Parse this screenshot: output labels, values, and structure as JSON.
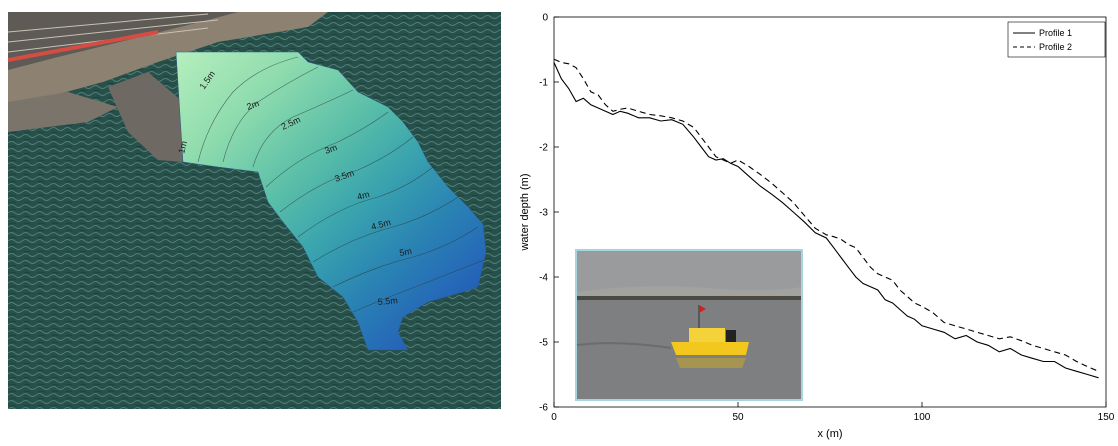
{
  "map": {
    "contour_labels": [
      "1.5m",
      "2m",
      "2.5m",
      "3m",
      "3.5m",
      "4m",
      "4.5m",
      "5m",
      "5.5m",
      "1m"
    ],
    "colors": {
      "sea": "#27504a",
      "land": "#8d8171",
      "rock": "#6e6a63",
      "bathy_shallow": "#a8e8b4",
      "bathy_deep": "#1e52b0"
    }
  },
  "inset": {
    "colors": {
      "sky": "#8f9091",
      "water": "#7d7f80",
      "boat": "#f2c81e",
      "border": "#a6d5e0"
    }
  },
  "chart_data": {
    "type": "line",
    "title": "",
    "xlabel": "x (m)",
    "ylabel": "water depth (m)",
    "xlim": [
      0,
      150
    ],
    "ylim": [
      -6,
      0
    ],
    "xticks": [
      0,
      50,
      100,
      150
    ],
    "yticks": [
      0,
      -1,
      -2,
      -3,
      -4,
      -5,
      -6
    ],
    "grid": false,
    "legend_position": "top-right",
    "series": [
      {
        "name": "Profile 1",
        "style": "solid",
        "x": [
          0,
          2,
          4,
          6,
          8,
          10,
          12,
          14,
          16,
          18,
          20,
          23,
          26,
          29,
          32,
          35,
          38,
          40,
          42,
          44,
          46,
          48,
          50,
          53,
          56,
          59,
          62,
          65,
          68,
          71,
          74,
          76,
          78,
          80,
          82,
          84,
          86,
          88,
          90,
          92,
          94,
          96,
          98,
          100,
          103,
          106,
          109,
          112,
          115,
          118,
          121,
          124,
          127,
          130,
          133,
          136,
          139,
          142,
          145,
          148
        ],
        "y": [
          -0.7,
          -0.95,
          -1.1,
          -1.3,
          -1.25,
          -1.35,
          -1.4,
          -1.45,
          -1.5,
          -1.45,
          -1.48,
          -1.55,
          -1.55,
          -1.6,
          -1.58,
          -1.65,
          -1.85,
          -2.0,
          -2.15,
          -2.2,
          -2.18,
          -2.25,
          -2.3,
          -2.45,
          -2.6,
          -2.72,
          -2.85,
          -3.0,
          -3.15,
          -3.32,
          -3.4,
          -3.55,
          -3.7,
          -3.85,
          -4.0,
          -4.1,
          -4.15,
          -4.2,
          -4.35,
          -4.4,
          -4.5,
          -4.6,
          -4.65,
          -4.75,
          -4.8,
          -4.85,
          -4.95,
          -4.9,
          -5.0,
          -5.05,
          -5.15,
          -5.1,
          -5.2,
          -5.25,
          -5.3,
          -5.3,
          -5.4,
          -5.45,
          -5.5,
          -5.55
        ]
      },
      {
        "name": "Profile 2",
        "style": "dashed",
        "x": [
          0,
          2,
          4,
          6,
          8,
          10,
          12,
          14,
          16,
          18,
          20,
          23,
          26,
          29,
          32,
          35,
          38,
          40,
          42,
          44,
          46,
          48,
          50,
          53,
          56,
          59,
          62,
          65,
          68,
          71,
          74,
          76,
          78,
          80,
          82,
          84,
          86,
          88,
          90,
          92,
          94,
          96,
          98,
          100,
          103,
          106,
          109,
          112,
          115,
          118,
          121,
          124,
          127,
          130,
          133,
          136,
          139,
          142,
          145,
          148
        ],
        "y": [
          -0.65,
          -0.7,
          -0.72,
          -0.78,
          -0.95,
          -1.15,
          -1.2,
          -1.35,
          -1.45,
          -1.42,
          -1.4,
          -1.45,
          -1.5,
          -1.52,
          -1.55,
          -1.6,
          -1.7,
          -1.85,
          -2.0,
          -2.15,
          -2.2,
          -2.25,
          -2.2,
          -2.3,
          -2.42,
          -2.55,
          -2.7,
          -2.85,
          -3.05,
          -3.25,
          -3.35,
          -3.38,
          -3.42,
          -3.5,
          -3.55,
          -3.7,
          -3.85,
          -3.95,
          -4.0,
          -4.05,
          -4.2,
          -4.3,
          -4.4,
          -4.45,
          -4.55,
          -4.7,
          -4.75,
          -4.8,
          -4.85,
          -4.9,
          -4.95,
          -4.92,
          -4.98,
          -5.05,
          -5.1,
          -5.15,
          -5.2,
          -5.3,
          -5.38,
          -5.45
        ]
      }
    ]
  }
}
